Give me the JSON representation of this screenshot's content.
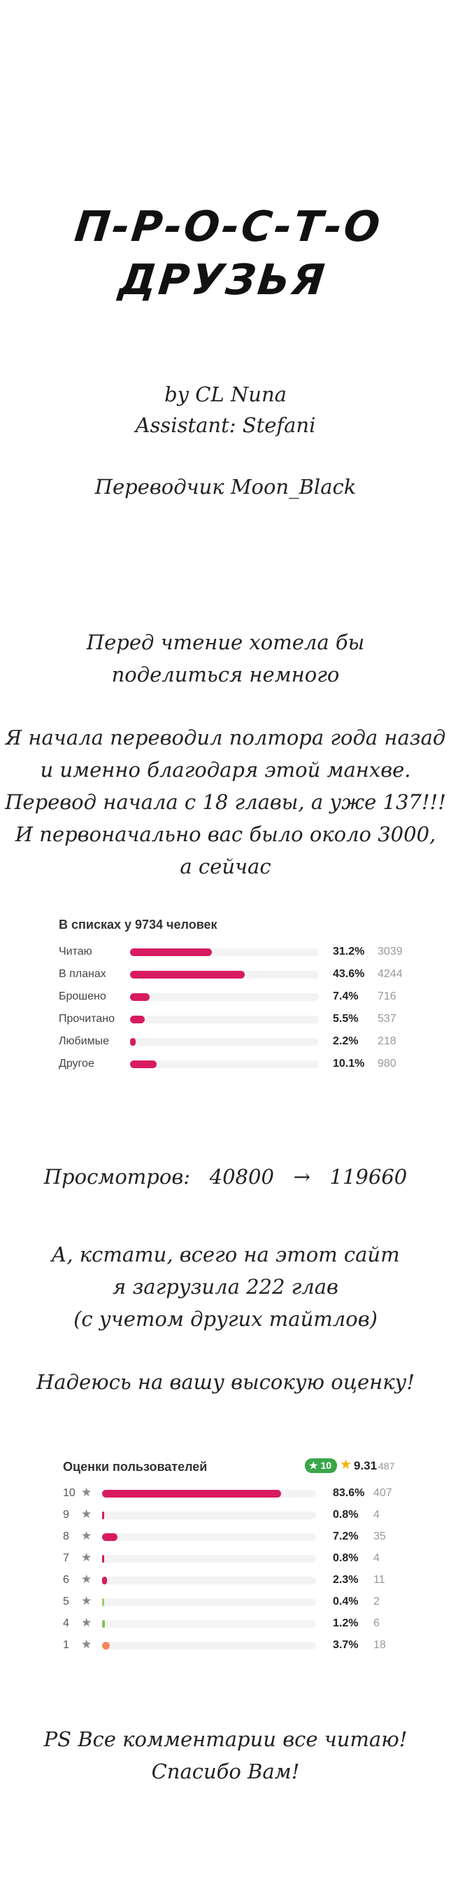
{
  "title": {
    "line1": "П-Р-О-С-Т-О",
    "line2": "ДРУЗЬЯ"
  },
  "credits": {
    "author": "by CL Nuna",
    "assistant": "Assistant: Stefani",
    "translator": "Переводчик Moon_Black"
  },
  "note": {
    "lines1": [
      "Перед чтение хотела бы",
      "поделиться немного"
    ],
    "lines2": [
      "Я начала переводил полтора года назад",
      "и именно благодаря этой манхве.",
      "Перевод начала с 18 главы, а уже 137!!!",
      "И первоначально вас было около 3000,",
      "а сейчас"
    ]
  },
  "lists": {
    "heading": "В списках у 9734 человек",
    "rows": [
      {
        "label": "Читаю",
        "percent": "31.2%",
        "count": "3039",
        "value": 31.2
      },
      {
        "label": "В планах",
        "percent": "43.6%",
        "count": "4244",
        "value": 43.6
      },
      {
        "label": "Брошено",
        "percent": "7.4%",
        "count": "716",
        "value": 7.4
      },
      {
        "label": "Прочитано",
        "percent": "5.5%",
        "count": "537",
        "value": 5.5
      },
      {
        "label": "Любимые",
        "percent": "2.2%",
        "count": "218",
        "value": 2.2
      },
      {
        "label": "Другое",
        "percent": "10.1%",
        "count": "980",
        "value": 10.1
      }
    ]
  },
  "views": {
    "label": "Просмотров:",
    "from": "40800",
    "arrow": "→",
    "to": "119660"
  },
  "chapters": {
    "lines": [
      "А, кстати, всего на этот сайт",
      "я загрузила 222 глав",
      "(с учетом других тайтлов)"
    ]
  },
  "hope": "Надеюсь на вашу высокую оценку!",
  "ratings": {
    "heading": "Оценки пользователей",
    "badge": "10",
    "badge_star": "★",
    "star": "★",
    "average": "9.31",
    "total": "487",
    "accent_color": "#d81b60",
    "rows": [
      {
        "score": "10",
        "percent": "83.6%",
        "count": "407",
        "value": 83.6,
        "color": "#d81b60"
      },
      {
        "score": "9",
        "percent": "0.8%",
        "count": "4",
        "value": 0.8,
        "color": "#d81b60"
      },
      {
        "score": "8",
        "percent": "7.2%",
        "count": "35",
        "value": 7.2,
        "color": "#d81b60"
      },
      {
        "score": "7",
        "percent": "0.8%",
        "count": "4",
        "value": 0.8,
        "color": "#d81b60"
      },
      {
        "score": "6",
        "percent": "2.3%",
        "count": "11",
        "value": 2.3,
        "color": "#d81b60"
      },
      {
        "score": "5",
        "percent": "0.4%",
        "count": "2",
        "value": 0.4,
        "color": "#9ccc65"
      },
      {
        "score": "4",
        "percent": "1.2%",
        "count": "6",
        "value": 1.2,
        "color": "#8bc34a"
      },
      {
        "score": "1",
        "percent": "3.7%",
        "count": "18",
        "value": 3.7,
        "color": "#f4875a"
      }
    ]
  },
  "ps": {
    "lines": [
      "PS Все комментарии все читаю!",
      "Спасибо Вам!"
    ]
  }
}
